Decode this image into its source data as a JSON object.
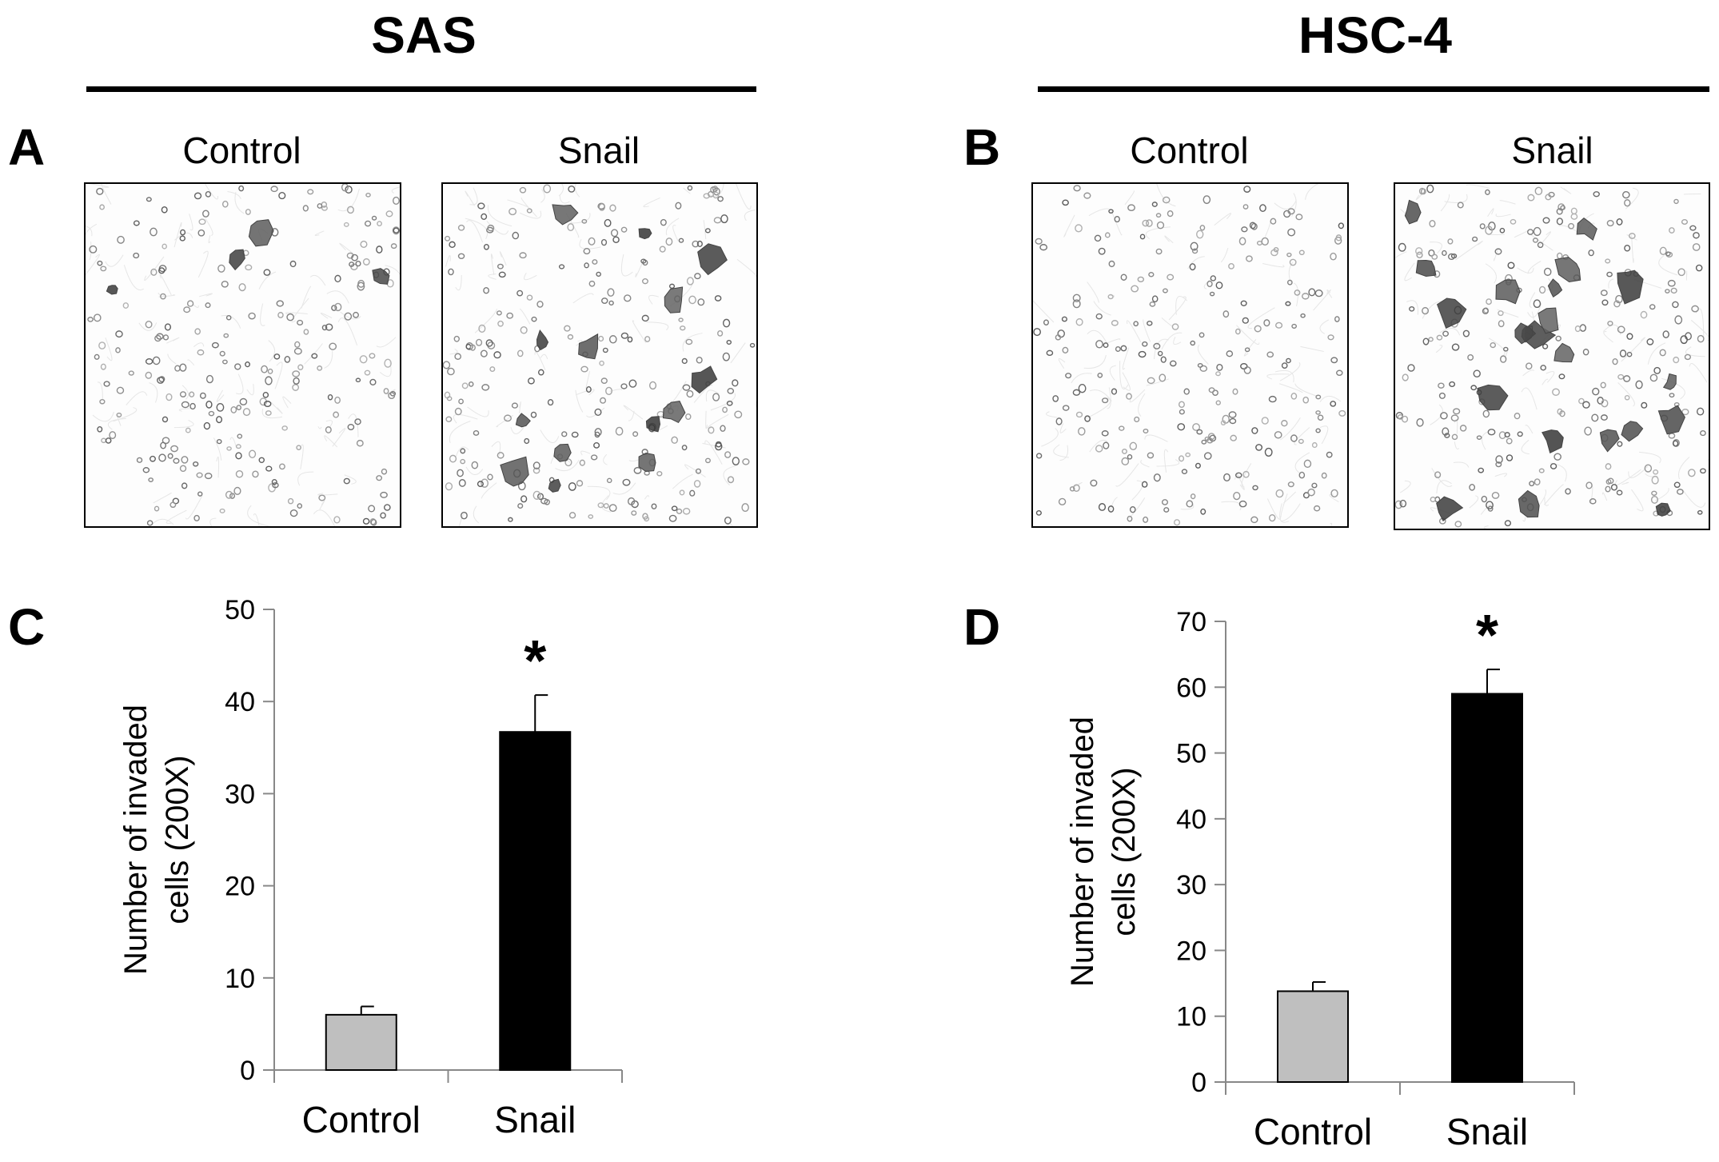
{
  "headings": {
    "left": "SAS",
    "right": "HSC-4"
  },
  "panels": {
    "A": {
      "letter": "A",
      "labels": [
        "Control",
        "Snail"
      ]
    },
    "B": {
      "letter": "B",
      "labels": [
        "Control",
        "Snail"
      ]
    },
    "C": {
      "letter": "C"
    },
    "D": {
      "letter": "D"
    }
  },
  "colors": {
    "control_bar": "#bfbfbf",
    "snail_bar": "#000000"
  },
  "chart_data": [
    {
      "type": "bar",
      "panel": "C",
      "categories": [
        "Control",
        "Snail"
      ],
      "values": [
        6,
        36.7
      ],
      "errors": [
        0.9,
        4.0
      ],
      "significance": [
        "",
        "*"
      ],
      "ylabel_lines": [
        "Number of invaded",
        "cells  (200X)"
      ],
      "ylim": [
        0,
        50
      ],
      "yticks": [
        0,
        10,
        20,
        30,
        40,
        50
      ]
    },
    {
      "type": "bar",
      "panel": "D",
      "categories": [
        "Control",
        "Snail"
      ],
      "values": [
        13.8,
        59
      ],
      "errors": [
        1.4,
        3.7
      ],
      "significance": [
        "",
        "*"
      ],
      "ylabel_lines": [
        "Number of invaded",
        "cells  (200X)"
      ],
      "ylim": [
        0,
        70
      ],
      "yticks": [
        0,
        10,
        20,
        30,
        40,
        50,
        60,
        70
      ]
    }
  ]
}
